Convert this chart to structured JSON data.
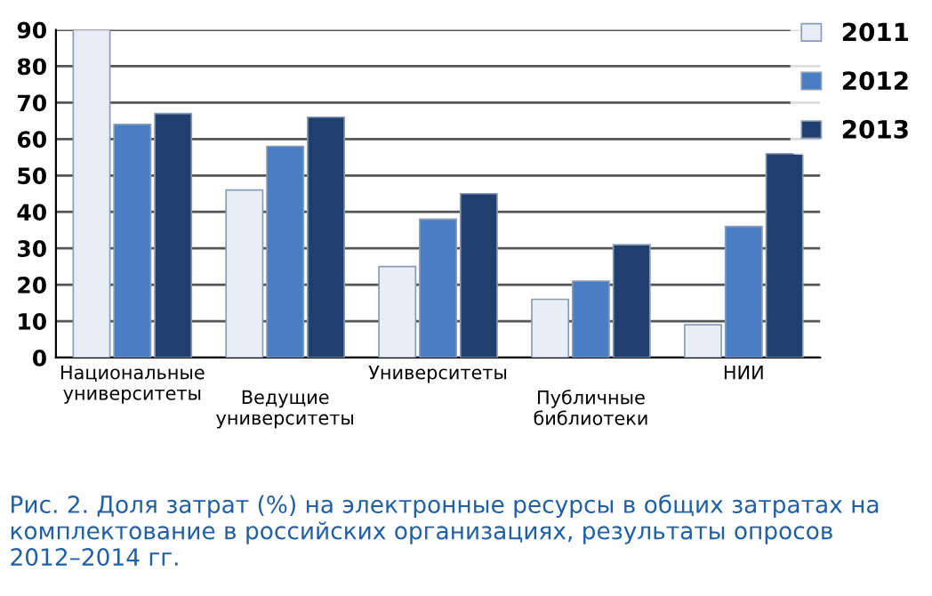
{
  "chart_data": {
    "type": "bar",
    "title": "Рис. 2. Доля затрат (%) на электронные ресурсы в общих затратах на комплектование в российских организациях, результаты опросов 2012–2014 гг.",
    "categories": [
      "Национальные\nуниверситеты",
      "Ведущие\nуниверситеты",
      "Университеты",
      "Публичные\nбиблиотеки",
      "НИИ"
    ],
    "series": [
      {
        "name": "2011",
        "color": "#e8eef7",
        "values": [
          90,
          46,
          25,
          16,
          9
        ]
      },
      {
        "name": "2012",
        "color": "#4a7ec4",
        "values": [
          64,
          58,
          38,
          21,
          36
        ]
      },
      {
        "name": "2013",
        "color": "#1f3f6e",
        "values": [
          67,
          66,
          45,
          31,
          56
        ]
      }
    ],
    "ylim": [
      0,
      90
    ],
    "yticks": [
      0,
      10,
      20,
      30,
      40,
      50,
      60,
      70,
      80,
      90
    ],
    "grid": "y",
    "legend": "top right"
  }
}
